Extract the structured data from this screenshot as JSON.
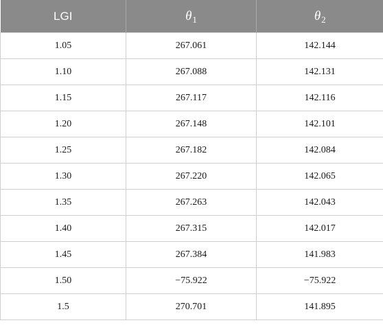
{
  "table": {
    "headers": {
      "col1": "LGI",
      "col2_symbol": "θ",
      "col2_sub": "1",
      "col3_symbol": "θ",
      "col3_sub": "2"
    },
    "rows": [
      [
        "1.05",
        "267.061",
        "142.144"
      ],
      [
        "1.10",
        "267.088",
        "142.131"
      ],
      [
        "1.15",
        "267.117",
        "142.116"
      ],
      [
        "1.20",
        "267.148",
        "142.101"
      ],
      [
        "1.25",
        "267.182",
        "142.084"
      ],
      [
        "1.30",
        "267.220",
        "142.065"
      ],
      [
        "1.35",
        "267.263",
        "142.043"
      ],
      [
        "1.40",
        "267.315",
        "142.017"
      ],
      [
        "1.45",
        "267.384",
        "141.983"
      ],
      [
        "1.50",
        "−75.922",
        "−75.922"
      ],
      [
        "1.5",
        "270.701",
        "141.895"
      ]
    ]
  },
  "colors": {
    "header_background": "#8a8a8a",
    "header_text": "#ffffff",
    "grid_line": "#cfcfcf"
  }
}
